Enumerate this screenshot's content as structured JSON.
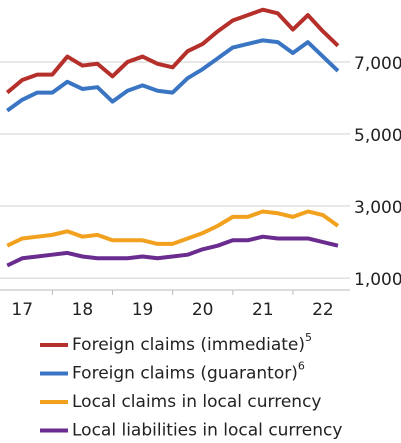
{
  "chart_data": {
    "type": "line",
    "x": [
      16.75,
      17,
      17.25,
      17.5,
      17.75,
      18,
      18.25,
      18.5,
      18.75,
      19,
      19.25,
      19.5,
      19.75,
      20,
      20.25,
      20.5,
      20.75,
      21,
      21.25,
      21.5,
      21.75,
      22,
      22.25
    ],
    "series": [
      {
        "name": "Foreign claims (immediate)",
        "footnote": "5",
        "color": "#b5302a",
        "values": [
          6150,
          6500,
          6650,
          6650,
          7150,
          6900,
          6950,
          6600,
          7000,
          7150,
          6950,
          6850,
          7300,
          7500,
          7850,
          8150,
          8300,
          8450,
          8350,
          7900,
          8300,
          7850,
          7450
        ]
      },
      {
        "name": "Foreign claims (guarantor)",
        "footnote": "6",
        "color": "#3a75c4",
        "values": [
          5650,
          5950,
          6150,
          6150,
          6450,
          6250,
          6300,
          5900,
          6200,
          6350,
          6200,
          6150,
          6550,
          6800,
          7100,
          7400,
          7500,
          7600,
          7550,
          7250,
          7550,
          7150,
          6750
        ]
      },
      {
        "name": "Local claims in local currency",
        "color": "#f2a11f",
        "values": [
          1900,
          2100,
          2150,
          2200,
          2300,
          2150,
          2200,
          2050,
          2050,
          2050,
          1950,
          1950,
          2100,
          2250,
          2450,
          2700,
          2700,
          2850,
          2800,
          2700,
          2850,
          2750,
          2450
        ]
      },
      {
        "name": "Local liabilities in local currency",
        "color": "#6a2c8e",
        "values": [
          1350,
          1550,
          1600,
          1650,
          1700,
          1600,
          1550,
          1550,
          1550,
          1600,
          1550,
          1600,
          1650,
          1800,
          1900,
          2050,
          2050,
          2150,
          2100,
          2100,
          2100,
          2000,
          1900
        ]
      }
    ],
    "xlim": [
      16.63,
      22.45
    ],
    "xticks": [
      17,
      18,
      19,
      20,
      21,
      22
    ],
    "ylim": [
      670,
      8720
    ],
    "yticks": [
      {
        "value": 1000,
        "label": "1,000"
      },
      {
        "value": 3000,
        "label": "3,000"
      },
      {
        "value": 5000,
        "label": "5,000"
      },
      {
        "value": 7000,
        "label": "7,000"
      }
    ],
    "grid": true
  }
}
